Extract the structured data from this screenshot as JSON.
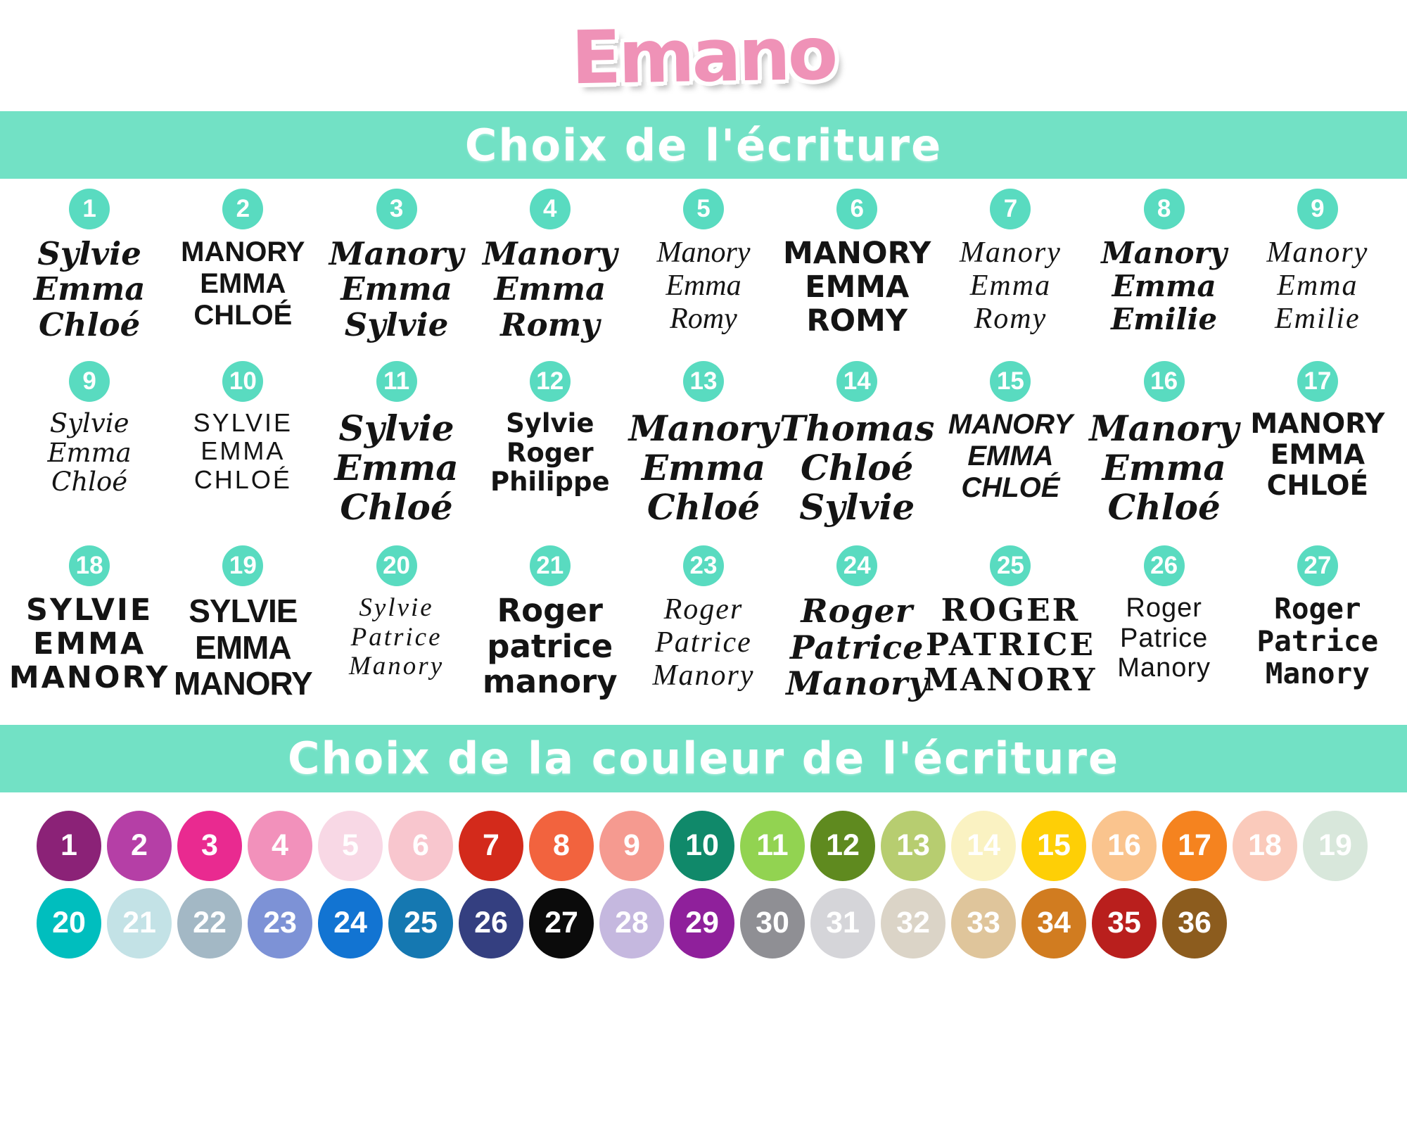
{
  "logo": {
    "text": "Emano",
    "color": "#ef92b7"
  },
  "accent_teal": "#72e1c5",
  "badge_teal": "#59dbc0",
  "writing_section": {
    "title": "Choix de l'écriture"
  },
  "color_section": {
    "title": "Choix de la couleur de l'écriture"
  },
  "fonts": {
    "rows": [
      {
        "items": [
          {
            "num": "1",
            "names": [
              "Sylvie",
              "Emma",
              "Chloé"
            ],
            "style": "script-bold"
          },
          {
            "num": "2",
            "names": [
              "MANORY",
              "EMMA",
              "CHLOÉ"
            ],
            "style": "caps-round"
          },
          {
            "num": "3",
            "names": [
              "Manory",
              "Emma",
              "Sylvie"
            ],
            "style": "script-bold"
          },
          {
            "num": "4",
            "names": [
              "Manory",
              "Emma",
              "Romy"
            ],
            "style": "script-bold"
          },
          {
            "num": "5",
            "names": [
              "Manory",
              "Emma",
              "Romy"
            ],
            "style": "script-light"
          },
          {
            "num": "6",
            "names": [
              "MANORY",
              "EMMA",
              "ROMY"
            ],
            "style": "caps-heavy"
          },
          {
            "num": "7",
            "names": [
              "Manory",
              "Emma",
              "Romy"
            ],
            "style": "script-elegant"
          },
          {
            "num": "8",
            "names": [
              "Manory",
              "Emma",
              "Emilie"
            ],
            "style": "script-medium"
          },
          {
            "num": "9",
            "names": [
              "Manory",
              "Emma",
              "Emilie"
            ],
            "style": "script-elegant"
          }
        ]
      },
      {
        "items": [
          {
            "num": "9",
            "names": [
              "Sylvie",
              "Emma",
              "Chloé"
            ],
            "style": "script-thin"
          },
          {
            "num": "10",
            "names": [
              "SYLVIE",
              "EMMA",
              "CHLOÉ"
            ],
            "style": "caps-thin"
          },
          {
            "num": "11",
            "names": [
              "Sylvie",
              "Emma",
              "Chloé"
            ],
            "style": "script-heavy"
          },
          {
            "num": "12",
            "names": [
              "Sylvie",
              "Roger",
              "Philippe"
            ],
            "style": "bold-sans"
          },
          {
            "num": "13",
            "names": [
              "Manory",
              "Emma",
              "Chloé"
            ],
            "style": "script-heavy"
          },
          {
            "num": "14",
            "names": [
              "Thomas",
              "Chloé",
              "Sylvie"
            ],
            "style": "script-heavy"
          },
          {
            "num": "15",
            "names": [
              "MANORY",
              "EMMA",
              "CHLOÉ"
            ],
            "style": "caps-marker"
          },
          {
            "num": "16",
            "names": [
              "Manory",
              "Emma",
              "Chloé"
            ],
            "style": "script-heavy"
          },
          {
            "num": "17",
            "names": [
              "MANORY",
              "EMMA",
              "CHLOÉ"
            ],
            "style": "caps-bold"
          }
        ]
      },
      {
        "items": [
          {
            "num": "18",
            "names": [
              "SYLVIE",
              "EMMA",
              "MANORY"
            ],
            "style": "caps-playful"
          },
          {
            "num": "19",
            "names": [
              "SYLVIE",
              "EMMA",
              "MANORY"
            ],
            "style": "caps-condensed"
          },
          {
            "num": "20",
            "names": [
              "Sylvie",
              "Patrice",
              "Manory"
            ],
            "style": "script-signature"
          },
          {
            "num": "21",
            "names": [
              "Roger",
              "patrice",
              "manory"
            ],
            "style": "bold-round"
          },
          {
            "num": "23",
            "names": [
              "Roger",
              "Patrice",
              "Manory"
            ],
            "style": "script-elegant"
          },
          {
            "num": "24",
            "names": [
              "Roger",
              "Patrice",
              "Manory"
            ],
            "style": "script-bold-serif"
          },
          {
            "num": "25",
            "names": [
              "ROGER",
              "PATRICE",
              "MANORY"
            ],
            "style": "stencil"
          },
          {
            "num": "26",
            "names": [
              "Roger",
              "Patrice",
              "Manory"
            ],
            "style": "thin-round"
          },
          {
            "num": "27",
            "names": [
              "Roger",
              "Patrice",
              "Manory"
            ],
            "style": "typewriter"
          }
        ]
      }
    ]
  },
  "colors": {
    "rows": [
      {
        "items": [
          {
            "num": "1",
            "hex": "#8B2277"
          },
          {
            "num": "2",
            "hex": "#B53FA6"
          },
          {
            "num": "3",
            "hex": "#E92A90"
          },
          {
            "num": "4",
            "hex": "#F291BB"
          },
          {
            "num": "5",
            "hex": "#F8D8E5"
          },
          {
            "num": "6",
            "hex": "#F8C6CE"
          },
          {
            "num": "7",
            "hex": "#D32A1B"
          },
          {
            "num": "8",
            "hex": "#F2633E"
          },
          {
            "num": "9",
            "hex": "#F59A90"
          },
          {
            "num": "10",
            "hex": "#10896A"
          },
          {
            "num": "11",
            "hex": "#92D351"
          },
          {
            "num": "12",
            "hex": "#5F8A1F"
          },
          {
            "num": "13",
            "hex": "#B7CD70"
          },
          {
            "num": "14",
            "hex": "#FAF2C2"
          },
          {
            "num": "15",
            "hex": "#FECF06"
          },
          {
            "num": "16",
            "hex": "#FAC48E"
          },
          {
            "num": "17",
            "hex": "#F5831F"
          },
          {
            "num": "18",
            "hex": "#FACABB"
          },
          {
            "num": "19",
            "hex": "#D8E7DB"
          }
        ]
      },
      {
        "items": [
          {
            "num": "20",
            "hex": "#00BEBE"
          },
          {
            "num": "21",
            "hex": "#C3E2E6"
          },
          {
            "num": "22",
            "hex": "#A3B8C5"
          },
          {
            "num": "23",
            "hex": "#7D92D6"
          },
          {
            "num": "24",
            "hex": "#1274D2"
          },
          {
            "num": "25",
            "hex": "#1578B1"
          },
          {
            "num": "26",
            "hex": "#343F80"
          },
          {
            "num": "27",
            "hex": "#0B0B0B"
          },
          {
            "num": "28",
            "hex": "#C5B8DF"
          },
          {
            "num": "29",
            "hex": "#8F209B"
          },
          {
            "num": "30",
            "hex": "#8F8F94"
          },
          {
            "num": "31",
            "hex": "#D5D5D9"
          },
          {
            "num": "32",
            "hex": "#DBD4C7"
          },
          {
            "num": "33",
            "hex": "#DFC59B"
          },
          {
            "num": "34",
            "hex": "#D17C20"
          },
          {
            "num": "35",
            "hex": "#B91F1D"
          },
          {
            "num": "36",
            "hex": "#8C5C1E"
          }
        ]
      }
    ]
  }
}
